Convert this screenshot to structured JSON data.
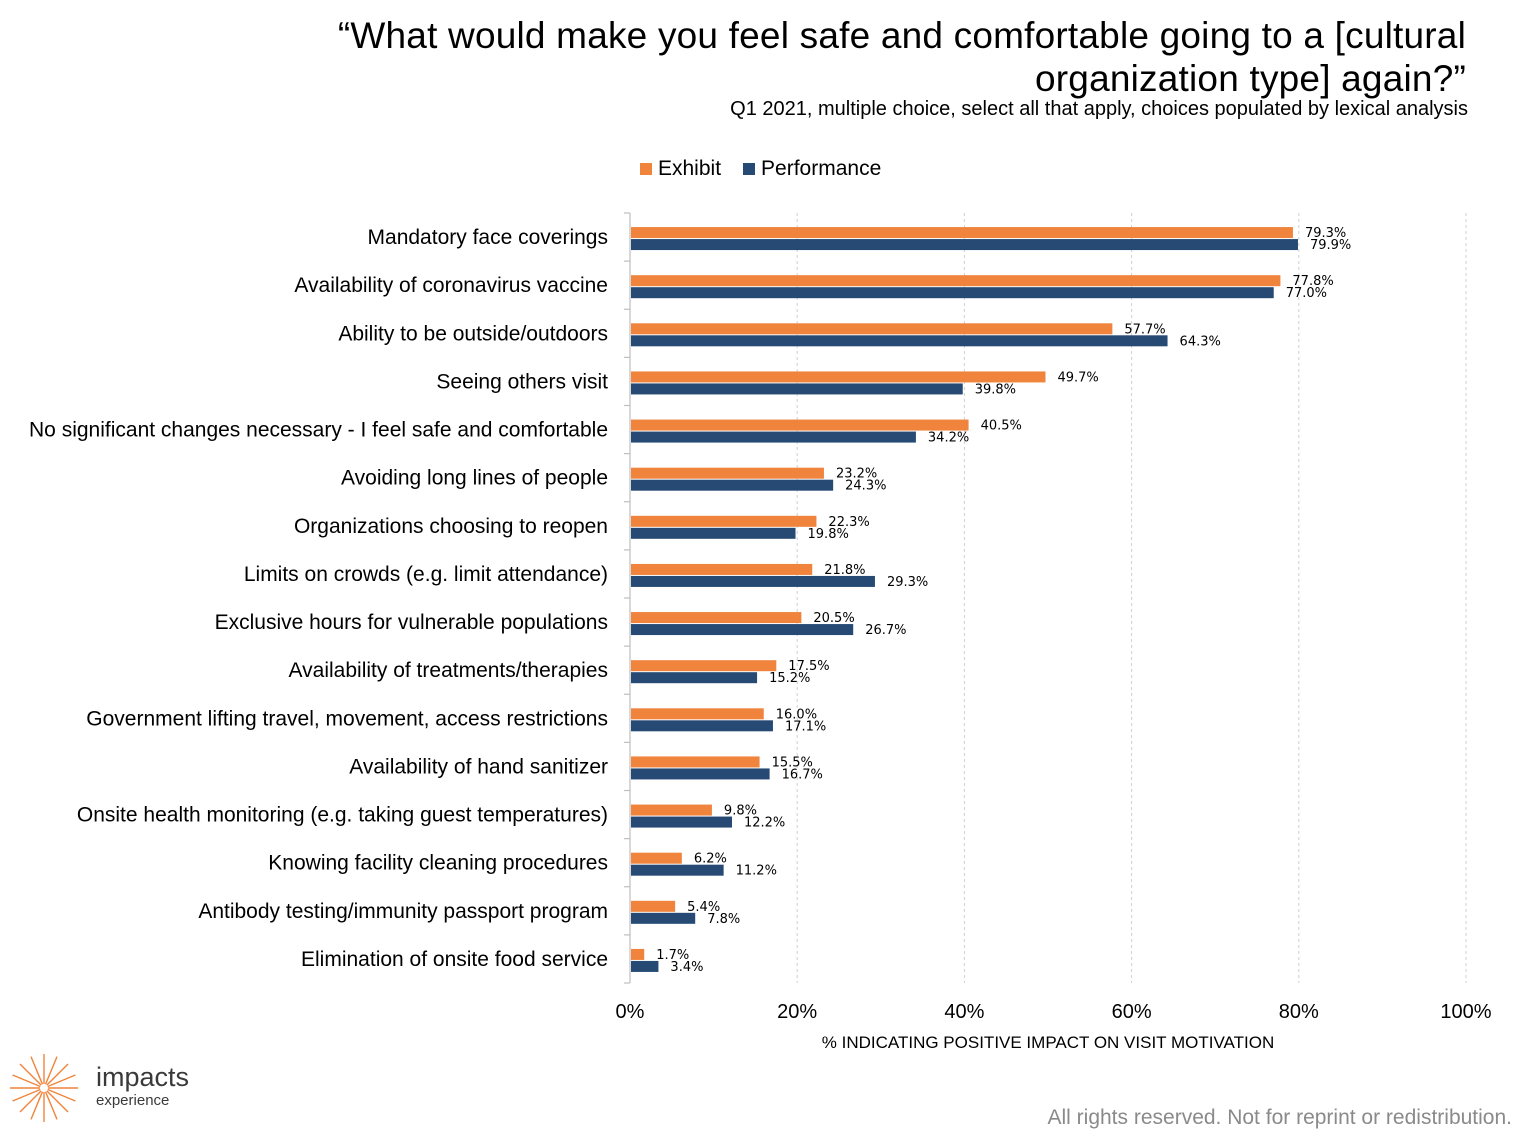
{
  "title": "“What would make you feel safe and comfortable going to a [cultural organization type] again?”",
  "subtitle": "Q1 2021, multiple choice, select all that apply, choices populated by lexical analysis",
  "footer": "All rights reserved. Not for reprint or redistribution.",
  "logo": {
    "word": "impacts",
    "sub": "experience",
    "accent": "#f0843c"
  },
  "colors": {
    "exhibit": "#f0843c",
    "performance": "#264a74",
    "grid": "#d0d0d0",
    "axis": "#bfbfbf"
  },
  "chart_data": {
    "type": "bar",
    "orientation": "horizontal",
    "categories": [
      "Mandatory face coverings",
      "Availability of coronavirus vaccine",
      "Ability to be outside/outdoors",
      "Seeing others visit",
      "No significant changes necessary - I feel safe and comfortable",
      "Avoiding long lines of people",
      "Organizations choosing to reopen",
      "Limits on crowds (e.g. limit attendance)",
      "Exclusive hours for vulnerable populations",
      "Availability of treatments/therapies",
      "Government lifting travel, movement, access restrictions",
      "Availability of hand sanitizer",
      "Onsite health monitoring (e.g. taking guest temperatures)",
      "Knowing facility cleaning procedures",
      "Antibody testing/immunity passport program",
      "Elimination of onsite food service"
    ],
    "series": [
      {
        "name": "Exhibit",
        "values": [
          79.3,
          77.8,
          57.7,
          49.7,
          40.5,
          23.2,
          22.3,
          21.8,
          20.5,
          17.5,
          16.0,
          15.5,
          9.8,
          6.2,
          5.4,
          1.7
        ]
      },
      {
        "name": "Performance",
        "values": [
          79.9,
          77.0,
          64.3,
          39.8,
          34.2,
          24.3,
          19.8,
          29.3,
          26.7,
          15.2,
          17.1,
          16.7,
          12.2,
          11.2,
          7.8,
          3.4
        ]
      }
    ],
    "xlabel": "% INDICATING POSITIVE IMPACT ON VISIT MOTIVATION",
    "xlim": [
      0,
      100
    ],
    "xticks": [
      "0%",
      "20%",
      "40%",
      "60%",
      "80%",
      "100%"
    ],
    "grid": "vertical dashed",
    "legend": "top"
  }
}
